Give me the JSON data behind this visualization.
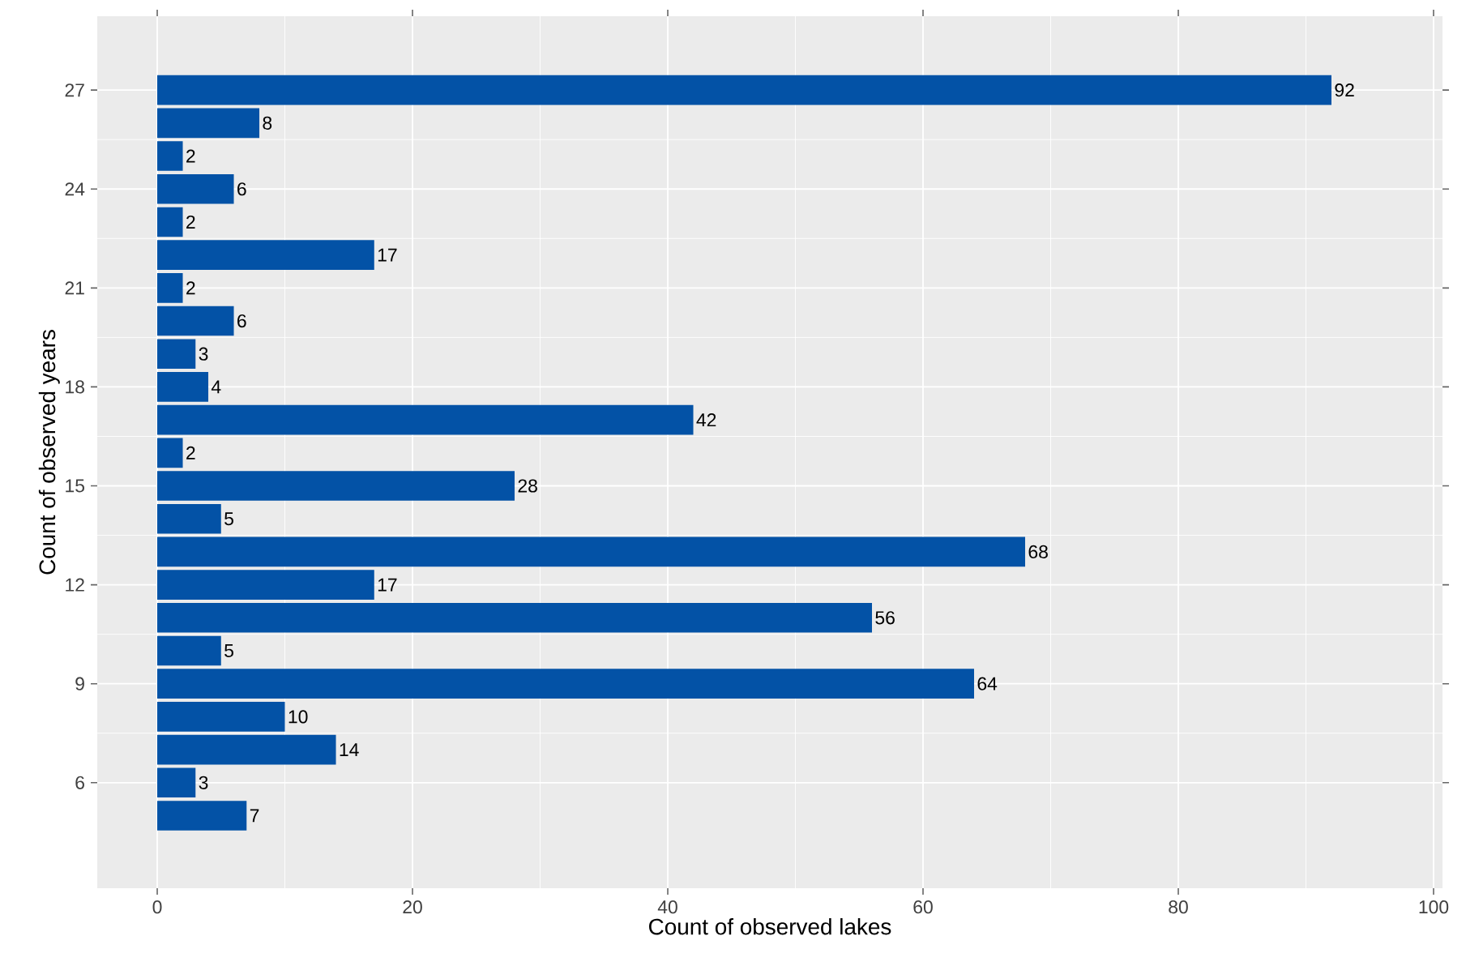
{
  "chart_data": {
    "type": "bar",
    "orientation": "horizontal",
    "xlabel": "Count of observed lakes",
    "ylabel": "Count of observed years",
    "categories": [
      "27",
      null,
      null,
      "24",
      null,
      null,
      "21",
      null,
      null,
      "18",
      null,
      null,
      "15",
      null,
      null,
      "12",
      null,
      null,
      "9",
      null,
      null,
      "6",
      null
    ],
    "values": [
      92,
      8,
      2,
      6,
      2,
      17,
      2,
      6,
      3,
      4,
      42,
      2,
      28,
      5,
      68,
      17,
      56,
      5,
      64,
      10,
      14,
      3,
      7
    ],
    "color": "#0352a6",
    "xlim": [
      -4.7,
      100.7
    ],
    "xticks": [
      0,
      20,
      40,
      60,
      80,
      100
    ],
    "grid": true,
    "data_labels": true
  }
}
